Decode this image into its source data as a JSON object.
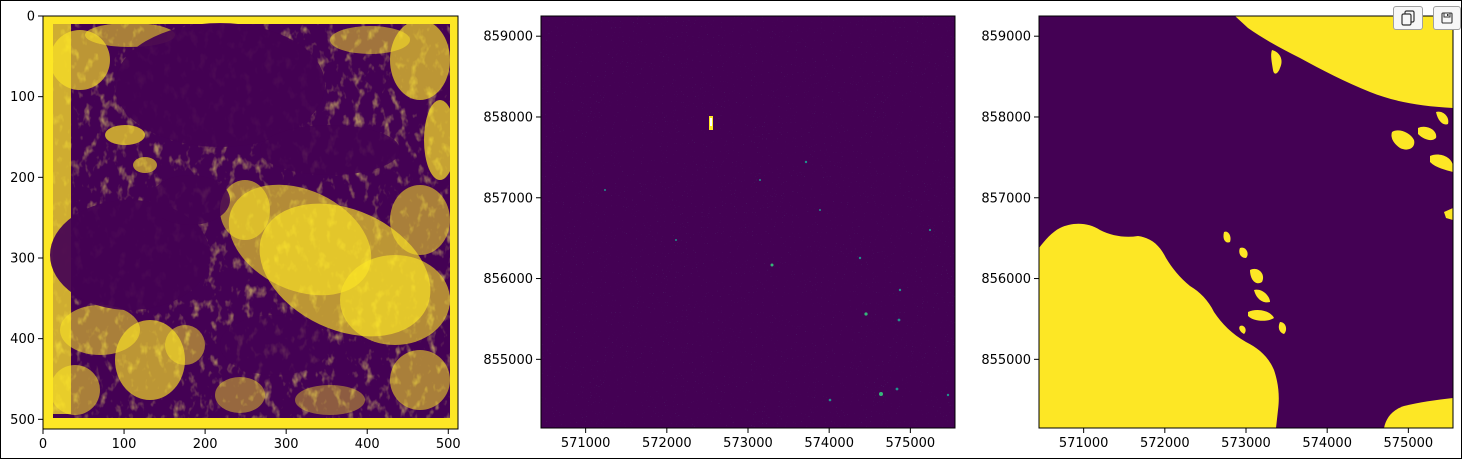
{
  "colors": {
    "low": "#440154",
    "high": "#fde725",
    "mid": "#21918c",
    "mid_light": "#35b779"
  },
  "toolbar": {
    "copy_icon": "copy-icon",
    "save_icon": "save-icon"
  },
  "chart_data": [
    {
      "type": "heatmap",
      "title": "",
      "xlabel": "",
      "ylabel": "",
      "colormap": "viridis",
      "values_shown": "binary mask (0/1)",
      "xlim": [
        0,
        512
      ],
      "ylim": [
        512,
        0
      ],
      "xticks": [
        0,
        100,
        200,
        300,
        400,
        500
      ],
      "xtick_labels": [
        "0",
        "100",
        "200",
        "300",
        "400",
        "500"
      ],
      "yticks": [
        0,
        100,
        200,
        300,
        400,
        500
      ],
      "ytick_labels": [
        "0",
        "100",
        "200",
        "300",
        "400",
        "500"
      ]
    },
    {
      "type": "heatmap",
      "title": "",
      "xlabel": "",
      "ylabel": "",
      "colormap": "viridis",
      "values_shown": "mostly low values with sparse bright speckles",
      "xlim": [
        570450,
        575550
      ],
      "ylim": [
        854150,
        859250
      ],
      "xticks": [
        571000,
        572000,
        573000,
        574000,
        575000
      ],
      "xtick_labels": [
        "571000",
        "572000",
        "573000",
        "574000",
        "575000"
      ],
      "yticks": [
        855000,
        856000,
        857000,
        858000,
        859000
      ],
      "ytick_labels": [
        "855000",
        "856000",
        "857000",
        "858000",
        "859000"
      ]
    },
    {
      "type": "heatmap",
      "title": "",
      "xlabel": "",
      "ylabel": "",
      "colormap": "viridis",
      "values_shown": "binary mask (0/1)",
      "xlim": [
        570450,
        575550
      ],
      "ylim": [
        854150,
        859250
      ],
      "xticks": [
        571000,
        572000,
        573000,
        574000,
        575000
      ],
      "xtick_labels": [
        "571000",
        "572000",
        "573000",
        "574000",
        "575000"
      ],
      "yticks": [
        855000,
        856000,
        857000,
        858000,
        859000
      ],
      "ytick_labels": [
        "855000",
        "856000",
        "857000",
        "858000",
        "859000"
      ]
    }
  ]
}
